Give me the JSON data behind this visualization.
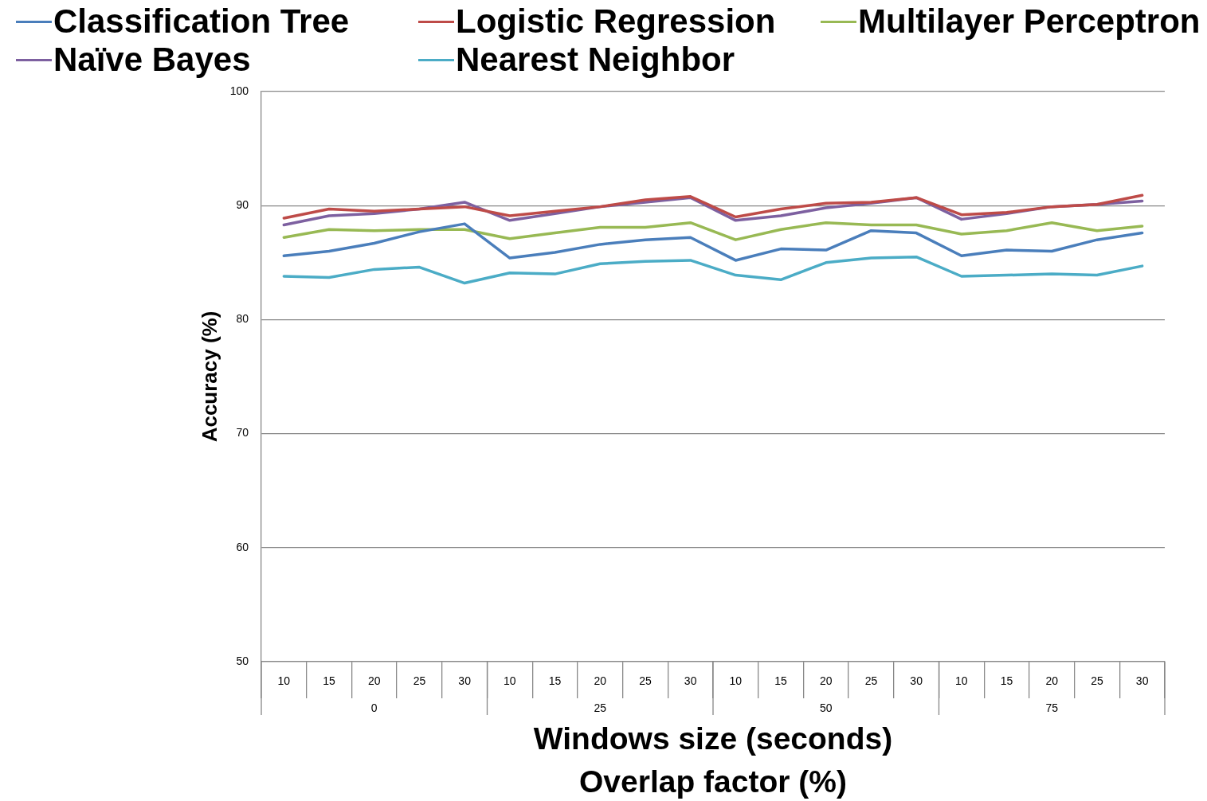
{
  "chart_data": {
    "type": "line",
    "categories": [
      "10",
      "15",
      "20",
      "25",
      "30",
      "10",
      "15",
      "20",
      "25",
      "30",
      "10",
      "15",
      "20",
      "25",
      "30",
      "10",
      "15",
      "20",
      "25",
      "30"
    ],
    "xlabel": "Windows size (seconds)",
    "x2label": "Overlap factor (%)",
    "x2lim": [
      -12.5,
      87.5
    ],
    "x2ticks": [
      0,
      25,
      50,
      75
    ],
    "ylabel": "Accuracy (%)",
    "ylim": [
      50,
      100
    ],
    "yticks": [
      50,
      60,
      70,
      80,
      90,
      100
    ],
    "grid": "y",
    "legend": "top",
    "marker": "none",
    "series": [
      {
        "name": "Classification Tree",
        "color": "#4a7ebb",
        "values": [
          85.6,
          86.0,
          86.7,
          87.7,
          88.4,
          85.4,
          85.9,
          86.6,
          87.0,
          87.2,
          85.2,
          86.2,
          86.1,
          87.8,
          87.6,
          85.6,
          86.1,
          86.0,
          87.0,
          87.6
        ]
      },
      {
        "name": "Logistic Regression",
        "color": "#be4b48",
        "values": [
          88.9,
          89.7,
          89.5,
          89.7,
          89.9,
          89.1,
          89.5,
          89.9,
          90.5,
          90.8,
          89.0,
          89.7,
          90.2,
          90.3,
          90.7,
          89.2,
          89.4,
          89.9,
          90.1,
          90.9
        ]
      },
      {
        "name": "Multilayer Perceptron",
        "color": "#98b954",
        "values": [
          87.2,
          87.9,
          87.8,
          87.9,
          87.9,
          87.1,
          87.6,
          88.1,
          88.1,
          88.5,
          87.0,
          87.9,
          88.5,
          88.3,
          88.3,
          87.5,
          87.8,
          88.5,
          87.8,
          88.2
        ]
      },
      {
        "name": "Naïve Bayes",
        "color": "#7d60a0",
        "values": [
          88.3,
          89.1,
          89.3,
          89.7,
          90.3,
          88.7,
          89.3,
          89.9,
          90.3,
          90.7,
          88.7,
          89.1,
          89.8,
          90.2,
          90.7,
          88.8,
          89.3,
          89.9,
          90.1,
          90.4
        ]
      },
      {
        "name": "Nearest Neighbor",
        "color": "#4bacc6",
        "values": [
          83.8,
          83.7,
          84.4,
          84.6,
          83.2,
          84.1,
          84.0,
          84.9,
          85.1,
          85.2,
          83.9,
          83.5,
          85.0,
          85.4,
          85.5,
          83.8,
          83.9,
          84.0,
          83.9,
          84.7
        ]
      }
    ]
  }
}
